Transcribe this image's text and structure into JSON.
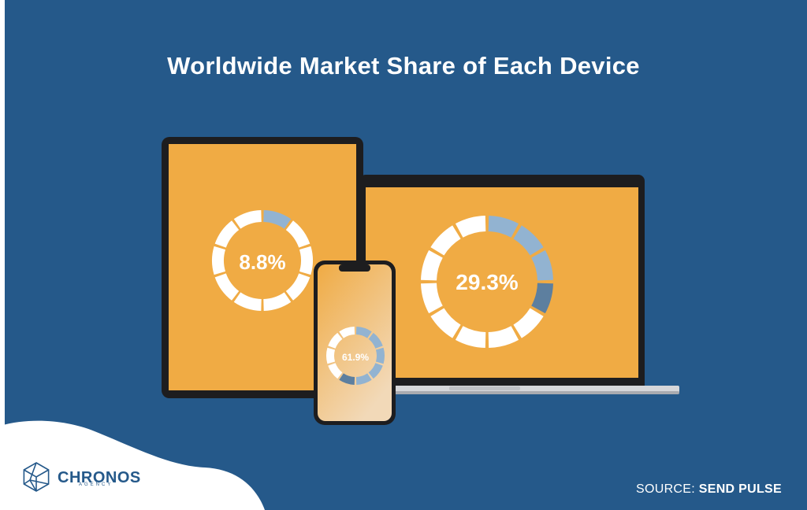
{
  "chart_data": {
    "type": "donut",
    "title": "Worldwide Market Share of Each Device",
    "series": [
      {
        "name": "",
        "values": [
          8.8
        ],
        "label": "8.8%"
      },
      {
        "name": "",
        "values": [
          29.3
        ],
        "label": "29.3%"
      },
      {
        "name": "",
        "values": [
          61.9
        ],
        "label": "61.9%"
      }
    ]
  },
  "brand": {
    "name": "CHRONOS",
    "sub": "AGENCY"
  },
  "footer": {
    "source_label": "SOURCE:",
    "source_name": "SEND PULSE"
  },
  "colors": {
    "background": "#25598a",
    "screen": "#f0ab44",
    "ring_empty": "#ffffff",
    "ring_filled": "#92b3d1",
    "ring_filled_dark": "#5d7f9f"
  }
}
